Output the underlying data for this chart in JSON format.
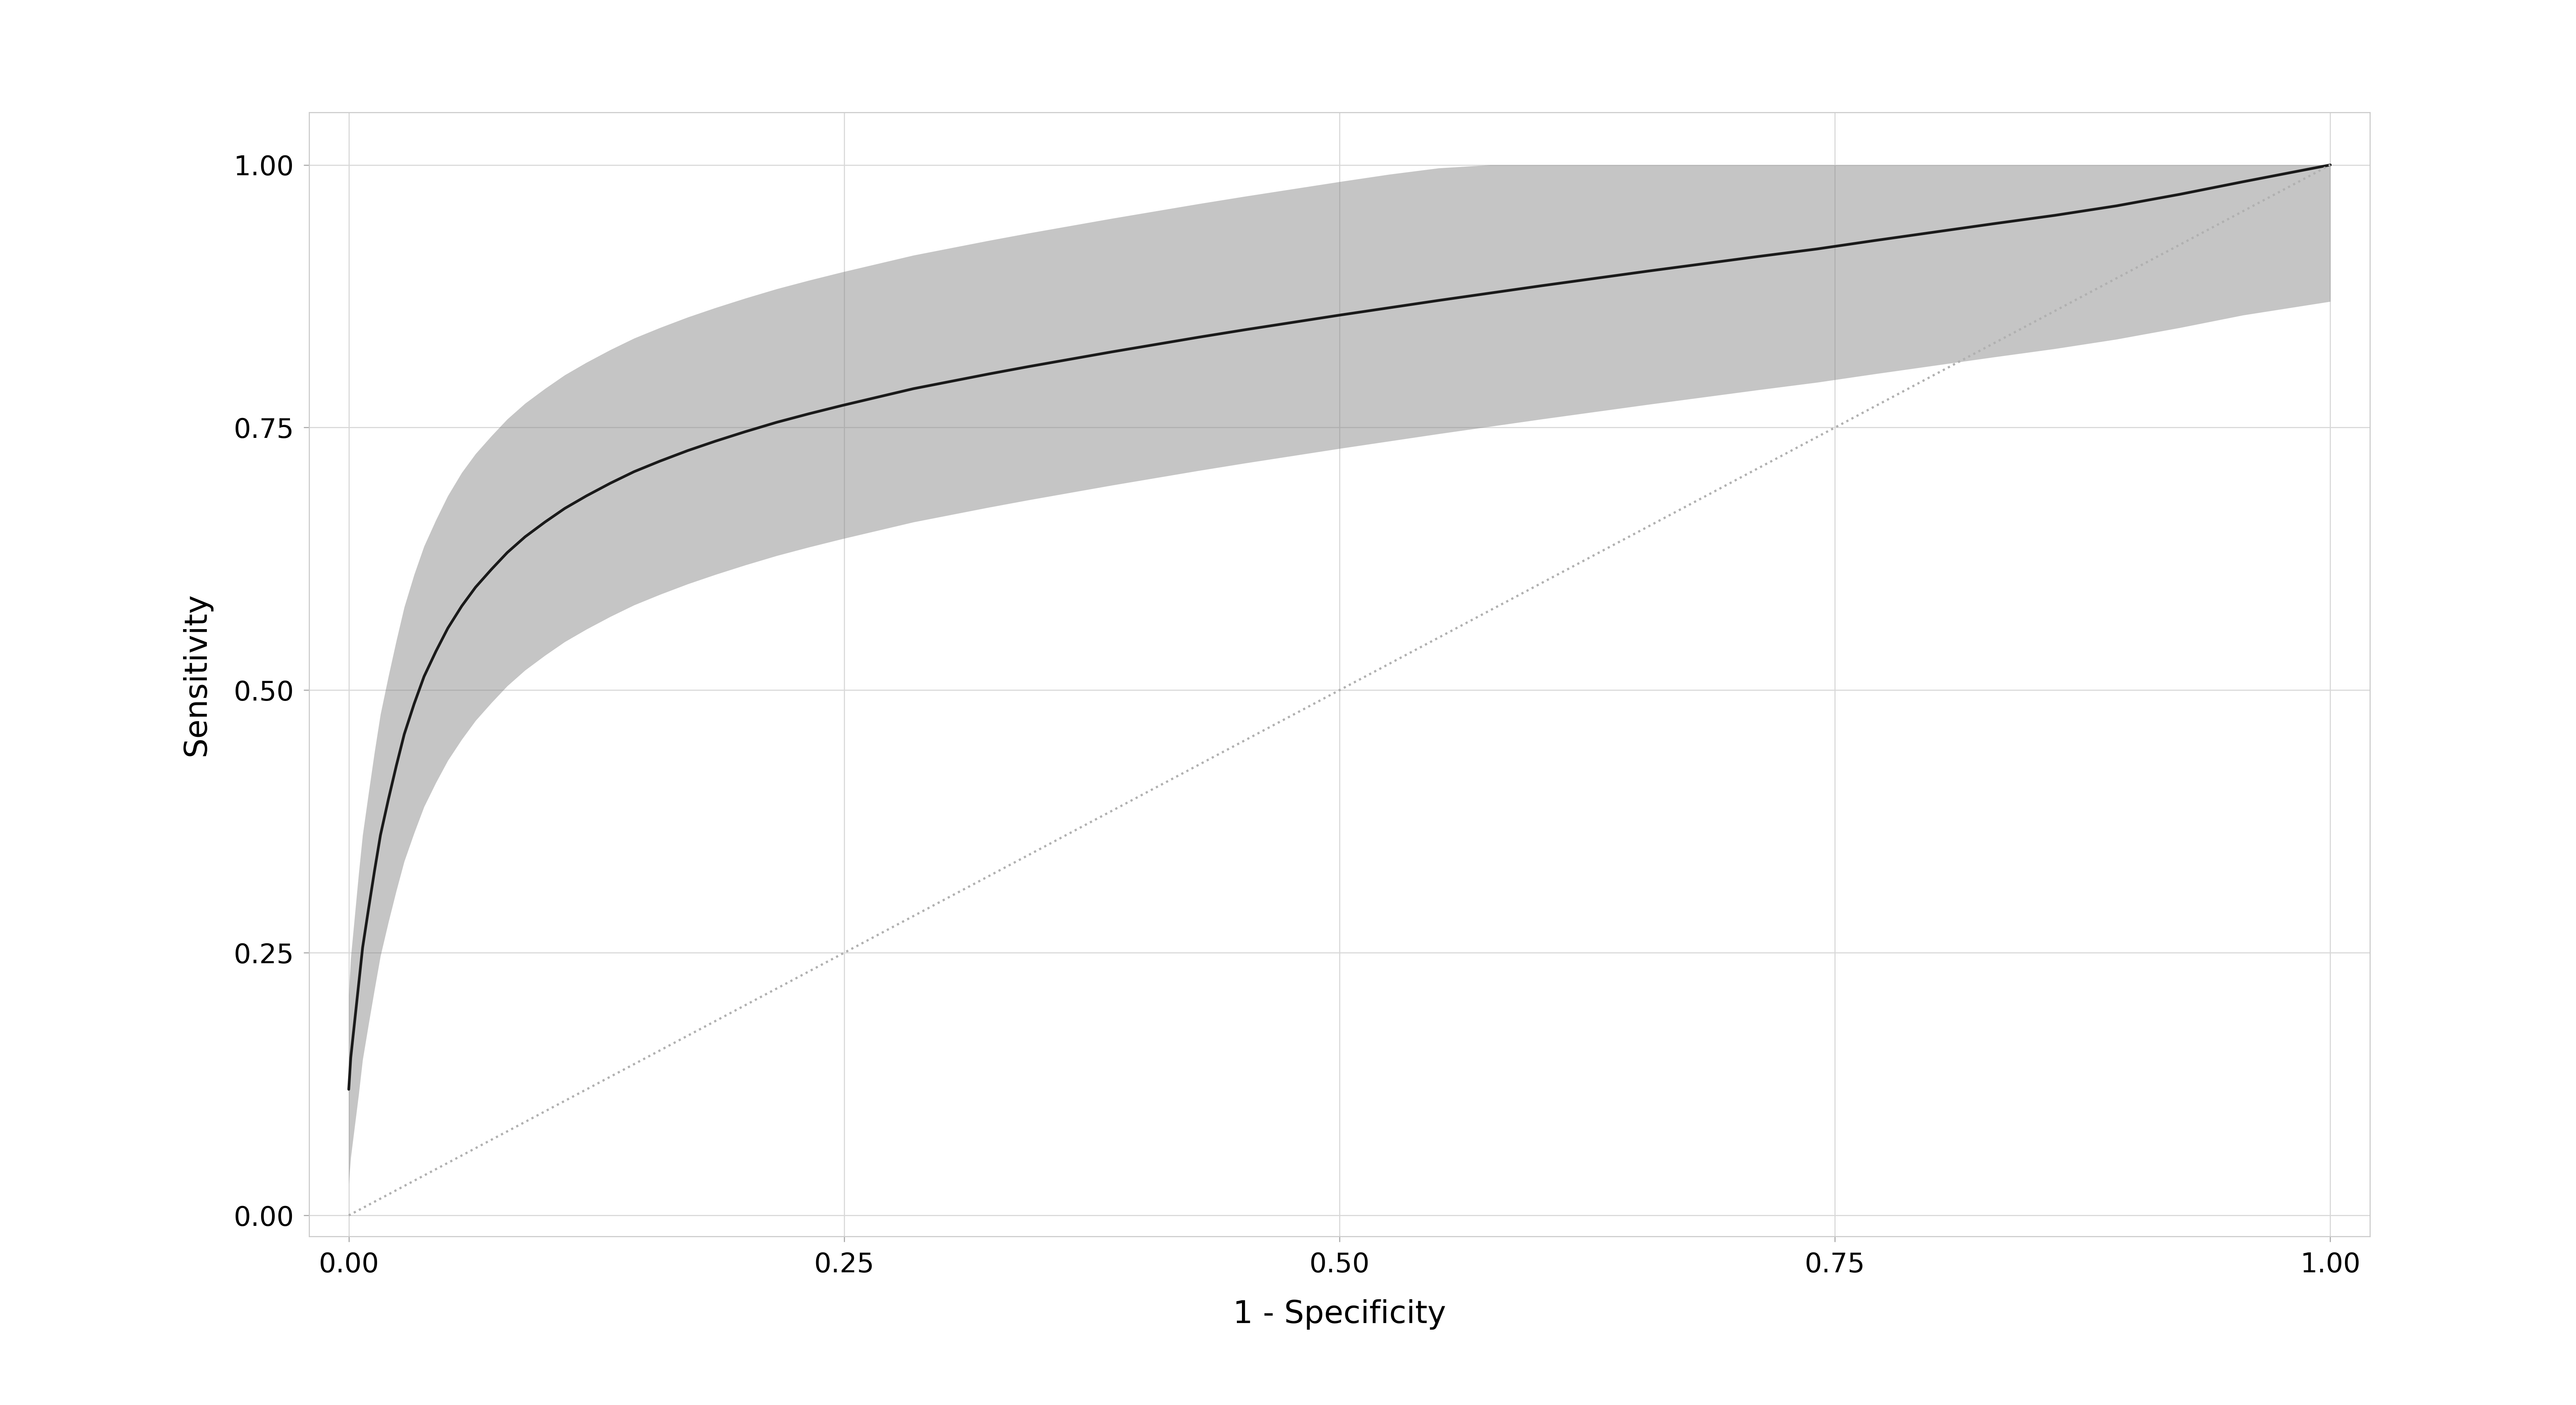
{
  "title": "",
  "xlabel": "1 - Specificity",
  "ylabel": "Sensitivity",
  "xlim": [
    -0.02,
    1.02
  ],
  "ylim": [
    -0.02,
    1.05
  ],
  "xticks": [
    0.0,
    0.25,
    0.5,
    0.75,
    1.0
  ],
  "yticks": [
    0.0,
    0.25,
    0.5,
    0.75,
    1.0
  ],
  "xtick_labels": [
    "0.00",
    "0.25",
    "0.50",
    "0.75",
    "1.00"
  ],
  "ytick_labels": [
    "0.00",
    "0.25",
    "0.50",
    "0.75",
    "1.00"
  ],
  "curve_color": "#1a1a1a",
  "fill_color": "#808080",
  "fill_alpha": 0.45,
  "diag_color": "#b0b0b0",
  "diag_linestyle": "dotted",
  "line_width": 5.0,
  "diag_linewidth": 4.0,
  "background_color": "#ffffff",
  "grid_color": "#d8d8d8",
  "font_size": 58,
  "tick_font_size": 50,
  "figsize": [
    66.0,
    36.0
  ],
  "dpi": 100,
  "roc_fpr": [
    0.0,
    0.001,
    0.003,
    0.005,
    0.007,
    0.01,
    0.013,
    0.016,
    0.02,
    0.024,
    0.028,
    0.033,
    0.038,
    0.044,
    0.05,
    0.057,
    0.064,
    0.072,
    0.08,
    0.089,
    0.099,
    0.109,
    0.12,
    0.132,
    0.144,
    0.157,
    0.171,
    0.185,
    0.2,
    0.216,
    0.232,
    0.249,
    0.267,
    0.285,
    0.304,
    0.323,
    0.343,
    0.364,
    0.385,
    0.407,
    0.429,
    0.452,
    0.476,
    0.5,
    0.525,
    0.55,
    0.576,
    0.602,
    0.629,
    0.656,
    0.684,
    0.712,
    0.741,
    0.77,
    0.8,
    0.83,
    0.861,
    0.892,
    0.924,
    0.956,
    1.0
  ],
  "roc_tpr": [
    0.12,
    0.15,
    0.185,
    0.22,
    0.255,
    0.292,
    0.328,
    0.362,
    0.396,
    0.428,
    0.458,
    0.487,
    0.513,
    0.537,
    0.559,
    0.58,
    0.598,
    0.615,
    0.631,
    0.646,
    0.66,
    0.673,
    0.685,
    0.697,
    0.708,
    0.718,
    0.728,
    0.737,
    0.746,
    0.755,
    0.763,
    0.771,
    0.779,
    0.787,
    0.794,
    0.801,
    0.808,
    0.815,
    0.822,
    0.829,
    0.836,
    0.843,
    0.85,
    0.857,
    0.864,
    0.871,
    0.878,
    0.885,
    0.892,
    0.899,
    0.906,
    0.913,
    0.92,
    0.928,
    0.936,
    0.944,
    0.952,
    0.961,
    0.972,
    0.984,
    1.0
  ],
  "roc_tpr_lower": [
    0.03,
    0.055,
    0.085,
    0.115,
    0.148,
    0.182,
    0.215,
    0.247,
    0.279,
    0.309,
    0.337,
    0.364,
    0.389,
    0.412,
    0.433,
    0.453,
    0.471,
    0.488,
    0.504,
    0.519,
    0.533,
    0.546,
    0.558,
    0.57,
    0.581,
    0.591,
    0.601,
    0.61,
    0.619,
    0.628,
    0.636,
    0.644,
    0.652,
    0.66,
    0.667,
    0.674,
    0.681,
    0.688,
    0.695,
    0.702,
    0.709,
    0.716,
    0.723,
    0.73,
    0.737,
    0.744,
    0.751,
    0.758,
    0.765,
    0.772,
    0.779,
    0.786,
    0.793,
    0.801,
    0.809,
    0.817,
    0.825,
    0.834,
    0.845,
    0.857,
    0.87
  ],
  "roc_tpr_upper": [
    0.21,
    0.245,
    0.285,
    0.325,
    0.362,
    0.402,
    0.441,
    0.477,
    0.513,
    0.547,
    0.579,
    0.61,
    0.637,
    0.662,
    0.685,
    0.707,
    0.725,
    0.742,
    0.758,
    0.773,
    0.787,
    0.8,
    0.812,
    0.824,
    0.835,
    0.845,
    0.855,
    0.864,
    0.873,
    0.882,
    0.89,
    0.898,
    0.906,
    0.914,
    0.921,
    0.928,
    0.935,
    0.942,
    0.949,
    0.956,
    0.963,
    0.97,
    0.977,
    0.984,
    0.991,
    0.997,
    1.0,
    1.0,
    1.0,
    1.0,
    1.0,
    1.0,
    1.0,
    1.0,
    1.0,
    1.0,
    1.0,
    1.0,
    1.0,
    1.0,
    1.0
  ]
}
